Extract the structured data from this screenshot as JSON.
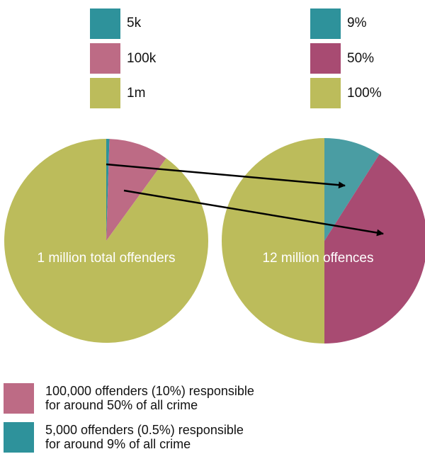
{
  "colors": {
    "teal": "#2e929b",
    "pink": "#bd6b85",
    "olive": "#bcbc5b",
    "teal_right": "#4a9da3",
    "pink_right": "#a84b72",
    "arrow": "#000000"
  },
  "chart_data": [
    {
      "type": "pie",
      "label": "1 million total offenders",
      "legend": [
        {
          "label": "5k",
          "color": "#2e929b"
        },
        {
          "label": "100k",
          "color": "#bd6b85"
        },
        {
          "label": "1m",
          "color": "#bcbc5b"
        }
      ],
      "slices": [
        {
          "share": 0.005,
          "color": "#2e929b"
        },
        {
          "share": 0.095,
          "color": "#bd6b85"
        },
        {
          "share": 0.9,
          "color": "#bcbc5b"
        }
      ]
    },
    {
      "type": "pie",
      "label": "12 million offences",
      "legend": [
        {
          "label": "9%",
          "color": "#2e929b"
        },
        {
          "label": "50%",
          "color": "#a84b72"
        },
        {
          "label": "100%",
          "color": "#bcbc5b"
        }
      ],
      "slices": [
        {
          "share": 0.09,
          "color": "#4a9da3"
        },
        {
          "share": 0.41,
          "color": "#a84b72"
        },
        {
          "share": 0.5,
          "color": "#bcbc5b"
        }
      ]
    }
  ],
  "notes": [
    {
      "line1": "100,000 offenders (10%) responsible",
      "line2": "for around 50% of all crime",
      "color": "#bd6b85"
    },
    {
      "line1": "5,000 offenders (0.5%) responsible",
      "line2": "for around 9% of all crime",
      "color": "#2e929b"
    }
  ]
}
